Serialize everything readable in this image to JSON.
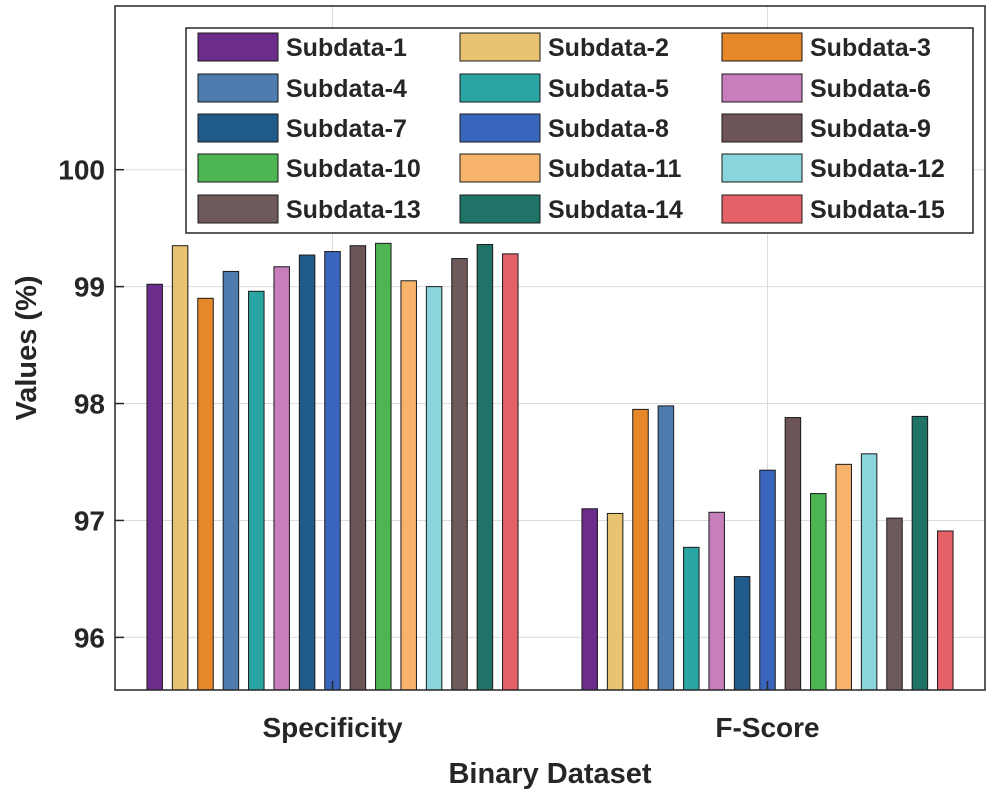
{
  "chart_data": {
    "type": "bar",
    "title": "",
    "xlabel": "Binary Dataset",
    "ylabel": "Values (%)",
    "ylim": [
      95.55,
      101.4
    ],
    "yticks": [
      96,
      97,
      98,
      99,
      100
    ],
    "grid": true,
    "legend_position": "top-right",
    "categories": [
      "Specificity",
      "F-Score"
    ],
    "series": [
      {
        "name": "Subdata-1",
        "color": "#6b2c8c",
        "values": [
          99.02,
          97.1
        ]
      },
      {
        "name": "Subdata-2",
        "color": "#e8c372",
        "values": [
          99.35,
          97.06
        ]
      },
      {
        "name": "Subdata-3",
        "color": "#e6872a",
        "values": [
          98.9,
          97.95
        ]
      },
      {
        "name": "Subdata-4",
        "color": "#4f7cae",
        "values": [
          99.13,
          97.98
        ]
      },
      {
        "name": "Subdata-5",
        "color": "#2aa5a3",
        "values": [
          98.96,
          96.77
        ]
      },
      {
        "name": "Subdata-6",
        "color": "#c77fbb",
        "values": [
          99.17,
          97.07
        ]
      },
      {
        "name": "Subdata-7",
        "color": "#215b8b",
        "values": [
          99.27,
          96.52
        ]
      },
      {
        "name": "Subdata-8",
        "color": "#3a65bd",
        "values": [
          99.3,
          97.43
        ]
      },
      {
        "name": "Subdata-9",
        "color": "#6d5457",
        "values": [
          99.35,
          97.88
        ]
      },
      {
        "name": "Subdata-10",
        "color": "#4eb553",
        "values": [
          99.37,
          97.23
        ]
      },
      {
        "name": "Subdata-11",
        "color": "#f8b36b",
        "values": [
          99.05,
          97.48
        ]
      },
      {
        "name": "Subdata-12",
        "color": "#8ad5db",
        "values": [
          99.0,
          97.57
        ]
      },
      {
        "name": "Subdata-13",
        "color": "#6e5a5a",
        "values": [
          99.24,
          97.02
        ]
      },
      {
        "name": "Subdata-14",
        "color": "#1f7367",
        "values": [
          99.36,
          97.89
        ]
      },
      {
        "name": "Subdata-15",
        "color": "#e56167",
        "values": [
          99.28,
          96.91
        ]
      }
    ]
  }
}
